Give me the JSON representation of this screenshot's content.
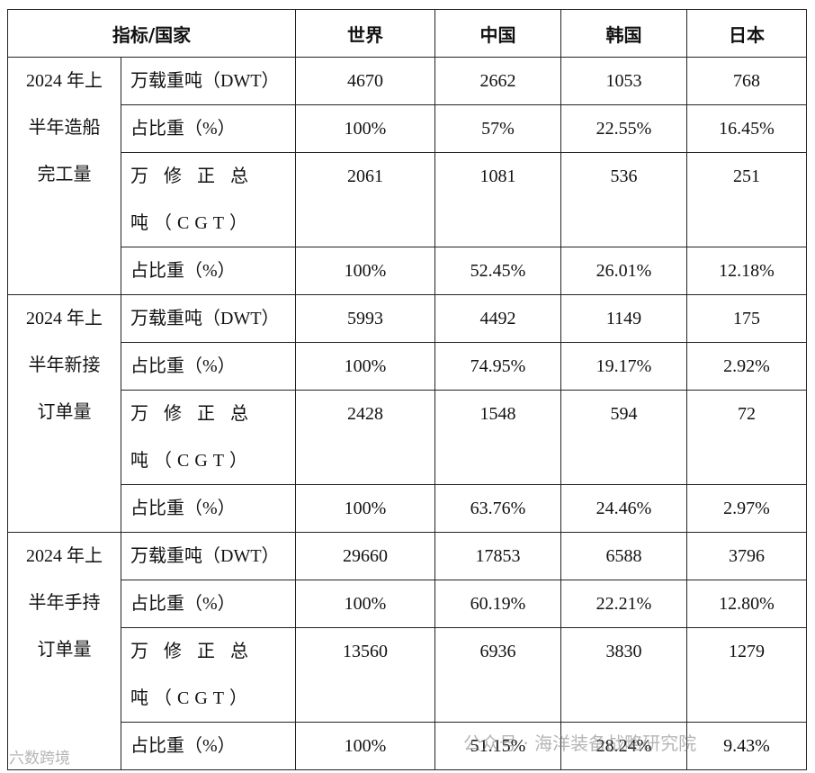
{
  "table": {
    "header": [
      "指标/国家",
      "世界",
      "中国",
      "韩国",
      "日本"
    ],
    "groups": [
      {
        "label": "2024 年上半年造船完工量",
        "rows": [
          {
            "metric": "万载重吨（DWT）",
            "values": [
              "4670",
              "2662",
              "1053",
              "768"
            ]
          },
          {
            "metric": "占比重（%）",
            "values": [
              "100%",
              "57%",
              "22.55%",
              "16.45%"
            ]
          },
          {
            "metric": "万 修 正 总 吨（CGT）",
            "values": [
              "2061",
              "1081",
              "536",
              "251"
            ]
          },
          {
            "metric": "占比重（%）",
            "values": [
              "100%",
              "52.45%",
              "26.01%",
              "12.18%"
            ]
          }
        ]
      },
      {
        "label": "2024 年上半年新接订单量",
        "rows": [
          {
            "metric": "万载重吨（DWT）",
            "values": [
              "5993",
              "4492",
              "1149",
              "175"
            ]
          },
          {
            "metric": "占比重（%）",
            "values": [
              "100%",
              "74.95%",
              "19.17%",
              "2.92%"
            ]
          },
          {
            "metric": "万 修 正 总 吨（CGT）",
            "values": [
              "2428",
              "1548",
              "594",
              "72"
            ]
          },
          {
            "metric": "占比重（%）",
            "values": [
              "100%",
              "63.76%",
              "24.46%",
              "2.97%"
            ]
          }
        ]
      },
      {
        "label": "2024 年上半年手持订单量",
        "rows": [
          {
            "metric": "万载重吨（DWT）",
            "values": [
              "29660",
              "17853",
              "6588",
              "3796"
            ]
          },
          {
            "metric": "占比重（%）",
            "values": [
              "100%",
              "60.19%",
              "22.21%",
              "12.80%"
            ]
          },
          {
            "metric": "万 修 正 总 吨（CGT）",
            "values": [
              "13560",
              "6936",
              "3830",
              "1279"
            ]
          },
          {
            "metric": "占比重（%）",
            "values": [
              "100%",
              "51.15%",
              "28.24%",
              "9.43%"
            ]
          }
        ]
      }
    ]
  },
  "watermarks": [
    "公众号 · 海洋装备战略研究院",
    "六数跨境"
  ]
}
